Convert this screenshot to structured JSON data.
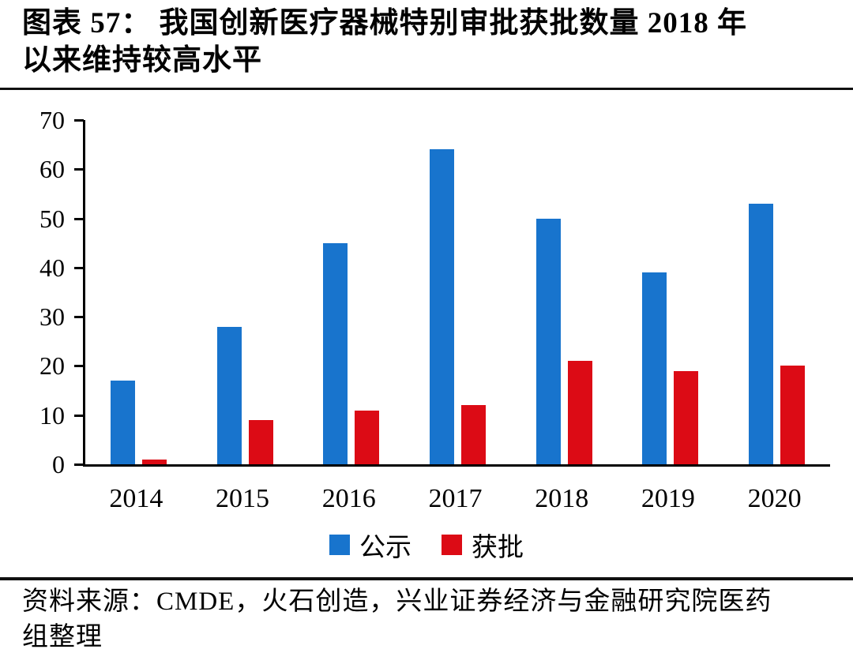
{
  "title": {
    "line1": "图表 57： 我国创新医疗器械特别审批获批数量 2018 年",
    "line2": "以来维持较高水平"
  },
  "chart_data": {
    "type": "bar",
    "title": "我国创新医疗器械特别审批获批数量",
    "categories": [
      "2014",
      "2015",
      "2016",
      "2017",
      "2018",
      "2019",
      "2020"
    ],
    "series": [
      {
        "name": "公示",
        "color": "#1874CD",
        "values": [
          17,
          28,
          45,
          64,
          50,
          39,
          53
        ]
      },
      {
        "name": "获批",
        "color": "#DC0B15",
        "values": [
          1,
          9,
          11,
          12,
          21,
          19,
          20
        ]
      }
    ],
    "xlabel": "",
    "ylabel": "",
    "ylim": [
      0,
      70
    ],
    "ytick_step": 10,
    "grid": false,
    "legend_position": "bottom",
    "axis_color": "#000000"
  },
  "source": {
    "line1": "资料来源：CMDE，火石创造，兴业证券经济与金融研究院医药",
    "line2": "组整理"
  }
}
